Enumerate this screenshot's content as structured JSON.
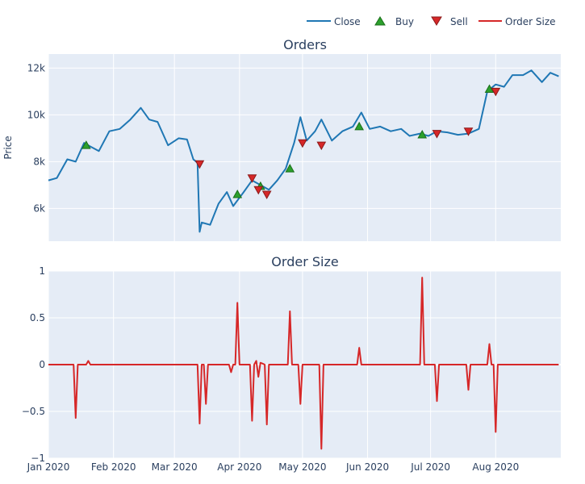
{
  "chart_data": [
    {
      "type": "line",
      "title": "Orders",
      "ylabel": "Price",
      "xlabel": "",
      "ylim": [
        4600,
        12600
      ],
      "y_ticks": [
        {
          "v": 6000,
          "label": "6k"
        },
        {
          "v": 8000,
          "label": "8k"
        },
        {
          "v": 10000,
          "label": "10k"
        },
        {
          "v": 12000,
          "label": "12k"
        }
      ],
      "series": [
        {
          "name": "Close",
          "color": "#1f77b4",
          "x": [
            "2020-01-01",
            "2020-01-05",
            "2020-01-10",
            "2020-01-14",
            "2020-01-18",
            "2020-01-21",
            "2020-01-25",
            "2020-01-30",
            "2020-02-04",
            "2020-02-09",
            "2020-02-14",
            "2020-02-18",
            "2020-02-22",
            "2020-02-27",
            "2020-03-03",
            "2020-03-07",
            "2020-03-10",
            "2020-03-12",
            "2020-03-13",
            "2020-03-14",
            "2020-03-18",
            "2020-03-22",
            "2020-03-26",
            "2020-03-29",
            "2020-04-03",
            "2020-04-07",
            "2020-04-11",
            "2020-04-15",
            "2020-04-19",
            "2020-04-23",
            "2020-04-27",
            "2020-04-30",
            "2020-05-03",
            "2020-05-07",
            "2020-05-10",
            "2020-05-15",
            "2020-05-20",
            "2020-05-25",
            "2020-05-29",
            "2020-06-02",
            "2020-06-07",
            "2020-06-12",
            "2020-06-17",
            "2020-06-21",
            "2020-06-26",
            "2020-06-30",
            "2020-07-04",
            "2020-07-09",
            "2020-07-14",
            "2020-07-19",
            "2020-07-24",
            "2020-07-28",
            "2020-08-01",
            "2020-08-05",
            "2020-08-09",
            "2020-08-14",
            "2020-08-18",
            "2020-08-23",
            "2020-08-27",
            "2020-08-31"
          ],
          "values": [
            7200,
            7300,
            8100,
            8000,
            8800,
            8650,
            8450,
            9300,
            9400,
            9800,
            10300,
            9800,
            9700,
            8700,
            9000,
            8950,
            8100,
            7950,
            5000,
            5400,
            5300,
            6200,
            6700,
            6100,
            6700,
            7200,
            7000,
            6800,
            7200,
            7700,
            8800,
            9900,
            8900,
            9300,
            9800,
            8900,
            9300,
            9500,
            10100,
            9400,
            9500,
            9300,
            9400,
            9100,
            9200,
            9100,
            9300,
            9250,
            9150,
            9200,
            9400,
            11000,
            11300,
            11200,
            11700,
            11700,
            11900,
            11400,
            11800,
            11650
          ]
        },
        {
          "name": "Buy",
          "color": "#2ca02c",
          "x": [
            "2020-01-19",
            "2020-03-31",
            "2020-04-11",
            "2020-04-25",
            "2020-05-28",
            "2020-06-27",
            "2020-07-29"
          ],
          "values": [
            8700,
            6600,
            6950,
            7700,
            9500,
            9150,
            11100
          ]
        },
        {
          "name": "Sell",
          "color": "#d62728",
          "x": [
            "2020-03-13",
            "2020-04-07",
            "2020-04-10",
            "2020-04-14",
            "2020-05-01",
            "2020-05-10",
            "2020-07-04",
            "2020-07-19",
            "2020-08-01"
          ],
          "values": [
            7900,
            7300,
            6800,
            6600,
            8800,
            8700,
            9200,
            9300,
            11000
          ]
        }
      ]
    },
    {
      "type": "line",
      "title": "Order Size",
      "xlabel": "",
      "ylabel": "",
      "ylim": [
        -1,
        1
      ],
      "y_ticks": [
        {
          "v": 1,
          "label": "1"
        },
        {
          "v": 0.5,
          "label": "0.5"
        },
        {
          "v": 0,
          "label": "0"
        },
        {
          "v": -0.5,
          "label": "−0.5"
        },
        {
          "v": -1,
          "label": "−1"
        }
      ],
      "x_ticks": [
        {
          "v": "2020-01-01",
          "label": "Jan 2020"
        },
        {
          "v": "2020-02-01",
          "label": "Feb 2020"
        },
        {
          "v": "2020-03-01",
          "label": "Mar 2020"
        },
        {
          "v": "2020-04-01",
          "label": "Apr 2020"
        },
        {
          "v": "2020-05-01",
          "label": "May 2020"
        },
        {
          "v": "2020-06-01",
          "label": "Jun 2020"
        },
        {
          "v": "2020-07-01",
          "label": "Jul 2020"
        },
        {
          "v": "2020-08-01",
          "label": "Aug 2020"
        }
      ],
      "series": [
        {
          "name": "Order Size",
          "color": "#d62728",
          "x": [
            "2020-01-01",
            "2020-01-13",
            "2020-01-14",
            "2020-01-15",
            "2020-01-19",
            "2020-01-20",
            "2020-01-21",
            "2020-03-12",
            "2020-03-13",
            "2020-03-14",
            "2020-03-15",
            "2020-03-16",
            "2020-03-17",
            "2020-03-27",
            "2020-03-28",
            "2020-03-29",
            "2020-03-30",
            "2020-03-31",
            "2020-04-01",
            "2020-04-06",
            "2020-04-07",
            "2020-04-08",
            "2020-04-09",
            "2020-04-10",
            "2020-04-11",
            "2020-04-12",
            "2020-04-13",
            "2020-04-14",
            "2020-04-15",
            "2020-04-24",
            "2020-04-25",
            "2020-04-26",
            "2020-04-29",
            "2020-04-30",
            "2020-05-01",
            "2020-05-09",
            "2020-05-10",
            "2020-05-11",
            "2020-05-27",
            "2020-05-28",
            "2020-05-29",
            "2020-06-26",
            "2020-06-27",
            "2020-06-28",
            "2020-07-03",
            "2020-07-04",
            "2020-07-05",
            "2020-07-18",
            "2020-07-19",
            "2020-07-20",
            "2020-07-28",
            "2020-07-29",
            "2020-07-30",
            "2020-07-31",
            "2020-08-01",
            "2020-08-02",
            "2020-08-31"
          ],
          "values": [
            0,
            0,
            -0.57,
            0,
            0,
            0.04,
            0,
            0,
            -0.63,
            0,
            0,
            -0.42,
            0,
            0,
            -0.08,
            0,
            0,
            0.66,
            0,
            0,
            -0.6,
            0,
            0.04,
            -0.13,
            0.02,
            0.01,
            0,
            -0.64,
            0,
            0,
            0.57,
            0,
            0,
            -0.42,
            0,
            0,
            -0.9,
            0,
            0,
            0.18,
            0,
            0,
            0.93,
            0,
            0,
            -0.39,
            0,
            0,
            -0.27,
            0,
            0,
            0.22,
            0,
            0,
            -0.72,
            0,
            0
          ]
        }
      ]
    }
  ]
}
